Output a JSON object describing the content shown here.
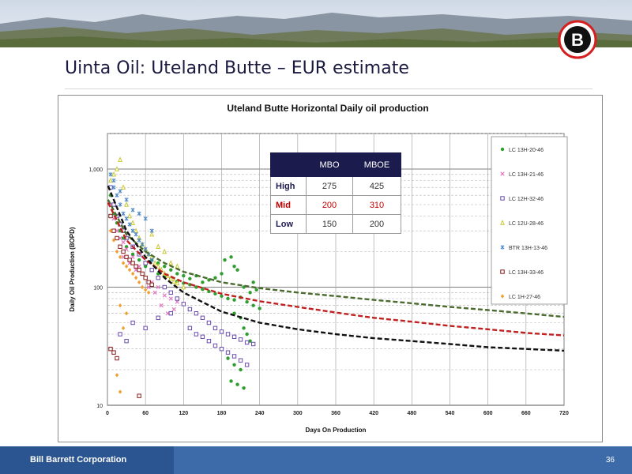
{
  "slide": {
    "title": "Uinta Oil: Uteland Butte – EUR estimate",
    "company": "Bill Barrett Corporation",
    "page_number": "36",
    "logo_letter": "B"
  },
  "eur_table": {
    "headers": [
      "",
      "MBO",
      "MBOE"
    ],
    "rows": [
      {
        "label": "High",
        "mbo": "275",
        "mboe": "425"
      },
      {
        "label": "Mid",
        "mbo": "200",
        "mboe": "310"
      },
      {
        "label": "Low",
        "mbo": "150",
        "mboe": "200"
      }
    ]
  },
  "chart_data": {
    "type": "scatter",
    "title": "Uteland Butte Horizontal Daily oil production",
    "xlabel": "Days On Production",
    "ylabel": "Daily Oil Production (BOPD)",
    "xlim": [
      0,
      720
    ],
    "ylim": [
      10,
      2000
    ],
    "y_scale": "log",
    "x_ticks": [
      0,
      60,
      120,
      180,
      240,
      300,
      360,
      420,
      480,
      540,
      600,
      660,
      720
    ],
    "x_tick_labels": [
      "0",
      "60",
      "120",
      "180",
      "240",
      "300",
      "360",
      "420",
      "480",
      "540",
      "600",
      "660",
      "720"
    ],
    "y_ticks": [
      10,
      100,
      1000
    ],
    "y_tick_labels": [
      "10",
      "100",
      "1,000"
    ],
    "grid": true,
    "legend_position": "right",
    "series": [
      {
        "name": "LC 13H-20-46",
        "marker": "circle",
        "color": "#2e9e2e",
        "points": [
          [
            5,
            600
          ],
          [
            10,
            420
          ],
          [
            15,
            350
          ],
          [
            20,
            300
          ],
          [
            25,
            260
          ],
          [
            30,
            220
          ],
          [
            40,
            190
          ],
          [
            50,
            170
          ],
          [
            60,
            150
          ],
          [
            70,
            140
          ],
          [
            80,
            130
          ],
          [
            90,
            125
          ],
          [
            100,
            118
          ],
          [
            110,
            112
          ],
          [
            120,
            108
          ],
          [
            130,
            105
          ],
          [
            140,
            100
          ],
          [
            150,
            96
          ],
          [
            160,
            92
          ],
          [
            170,
            88
          ],
          [
            180,
            84
          ],
          [
            190,
            80
          ],
          [
            200,
            78
          ],
          [
            210,
            82
          ],
          [
            220,
            75
          ],
          [
            230,
            70
          ],
          [
            240,
            66
          ],
          [
            185,
            170
          ],
          [
            195,
            180
          ],
          [
            200,
            150
          ],
          [
            205,
            140
          ],
          [
            215,
            100
          ],
          [
            225,
            90
          ],
          [
            230,
            110
          ],
          [
            235,
            95
          ],
          [
            200,
            60
          ],
          [
            210,
            55
          ],
          [
            215,
            45
          ],
          [
            220,
            40
          ],
          [
            190,
            25
          ],
          [
            200,
            22
          ],
          [
            210,
            20
          ],
          [
            195,
            16
          ],
          [
            205,
            15
          ],
          [
            215,
            14
          ],
          [
            225,
            35
          ],
          [
            180,
            130
          ],
          [
            170,
            120
          ],
          [
            160,
            115
          ],
          [
            150,
            110
          ],
          [
            140,
            125
          ],
          [
            130,
            118
          ],
          [
            120,
            125
          ],
          [
            110,
            130
          ],
          [
            100,
            140
          ],
          [
            90,
            150
          ],
          [
            80,
            160
          ],
          [
            70,
            170
          ]
        ]
      },
      {
        "name": "LC 13H-21-46",
        "marker": "x",
        "color": "#e377c2",
        "points": [
          [
            5,
            500
          ],
          [
            10,
            380
          ],
          [
            15,
            300
          ],
          [
            20,
            260
          ],
          [
            25,
            240
          ],
          [
            30,
            210
          ],
          [
            40,
            180
          ],
          [
            50,
            150
          ],
          [
            60,
            120
          ],
          [
            70,
            110
          ],
          [
            80,
            100
          ],
          [
            90,
            85
          ],
          [
            100,
            80
          ],
          [
            110,
            75
          ],
          [
            15,
            300
          ],
          [
            25,
            180
          ],
          [
            35,
            160
          ],
          [
            45,
            140
          ],
          [
            55,
            130
          ],
          [
            65,
            100
          ],
          [
            75,
            90
          ],
          [
            85,
            70
          ],
          [
            95,
            60
          ],
          [
            105,
            65
          ]
        ]
      },
      {
        "name": "LC 12H-32-46",
        "marker": "square",
        "color": "#6a4bb0",
        "points": [
          [
            5,
            700
          ],
          [
            10,
            500
          ],
          [
            15,
            400
          ],
          [
            20,
            340
          ],
          [
            25,
            300
          ],
          [
            30,
            260
          ],
          [
            40,
            220
          ],
          [
            50,
            190
          ],
          [
            60,
            160
          ],
          [
            70,
            140
          ],
          [
            80,
            120
          ],
          [
            90,
            100
          ],
          [
            100,
            90
          ],
          [
            110,
            80
          ],
          [
            120,
            72
          ],
          [
            130,
            65
          ],
          [
            140,
            60
          ],
          [
            150,
            55
          ],
          [
            160,
            50
          ],
          [
            170,
            45
          ],
          [
            180,
            42
          ],
          [
            190,
            40
          ],
          [
            200,
            38
          ],
          [
            210,
            36
          ],
          [
            220,
            34
          ],
          [
            230,
            33
          ],
          [
            130,
            45
          ],
          [
            140,
            40
          ],
          [
            150,
            38
          ],
          [
            160,
            35
          ],
          [
            170,
            32
          ],
          [
            180,
            30
          ],
          [
            190,
            28
          ],
          [
            200,
            26
          ],
          [
            210,
            24
          ],
          [
            220,
            22
          ],
          [
            20,
            40
          ],
          [
            30,
            35
          ],
          [
            40,
            50
          ],
          [
            60,
            45
          ],
          [
            80,
            55
          ],
          [
            100,
            60
          ]
        ]
      },
      {
        "name": "LC 12U-28-46",
        "marker": "triangle",
        "color": "#c9c832",
        "points": [
          [
            5,
            800
          ],
          [
            10,
            900
          ],
          [
            15,
            1000
          ],
          [
            20,
            1200
          ],
          [
            25,
            700
          ],
          [
            30,
            500
          ],
          [
            35,
            400
          ],
          [
            40,
            350
          ],
          [
            45,
            300
          ],
          [
            50,
            260
          ],
          [
            55,
            230
          ],
          [
            60,
            210
          ],
          [
            65,
            190
          ],
          [
            70,
            180
          ],
          [
            75,
            160
          ],
          [
            80,
            150
          ],
          [
            85,
            140
          ],
          [
            90,
            130
          ],
          [
            95,
            125
          ],
          [
            100,
            118
          ],
          [
            105,
            112
          ],
          [
            110,
            108
          ],
          [
            120,
            100
          ],
          [
            70,
            280
          ],
          [
            80,
            220
          ],
          [
            90,
            200
          ],
          [
            100,
            160
          ],
          [
            110,
            150
          ]
        ]
      },
      {
        "name": "BTR 13H-13-46",
        "marker": "star",
        "color": "#4a86c6",
        "points": [
          [
            5,
            900
          ],
          [
            10,
            700
          ],
          [
            15,
            600
          ],
          [
            20,
            500
          ],
          [
            25,
            420
          ],
          [
            30,
            380
          ],
          [
            35,
            340
          ],
          [
            40,
            300
          ],
          [
            45,
            280
          ],
          [
            50,
            250
          ],
          [
            55,
            230
          ],
          [
            60,
            210
          ],
          [
            65,
            190
          ],
          [
            70,
            170
          ],
          [
            10,
            800
          ],
          [
            20,
            650
          ],
          [
            30,
            550
          ],
          [
            40,
            450
          ],
          [
            50,
            420
          ],
          [
            60,
            380
          ],
          [
            70,
            300
          ]
        ]
      },
      {
        "name": "LC 13H-33-46",
        "marker": "square",
        "color": "#8b1a1a",
        "points": [
          [
            5,
            400
          ],
          [
            10,
            300
          ],
          [
            15,
            260
          ],
          [
            20,
            220
          ],
          [
            25,
            200
          ],
          [
            30,
            180
          ],
          [
            35,
            170
          ],
          [
            40,
            160
          ],
          [
            45,
            150
          ],
          [
            50,
            140
          ],
          [
            55,
            130
          ],
          [
            60,
            120
          ],
          [
            65,
            110
          ],
          [
            70,
            105
          ],
          [
            5,
            30
          ],
          [
            10,
            28
          ],
          [
            15,
            25
          ],
          [
            50,
            12
          ]
        ]
      },
      {
        "name": "LC 1H-27-46",
        "marker": "diamond",
        "color": "#f0a030",
        "points": [
          [
            5,
            300
          ],
          [
            10,
            250
          ],
          [
            15,
            200
          ],
          [
            20,
            180
          ],
          [
            25,
            160
          ],
          [
            30,
            150
          ],
          [
            35,
            140
          ],
          [
            40,
            130
          ],
          [
            45,
            120
          ],
          [
            50,
            110
          ],
          [
            55,
            100
          ],
          [
            60,
            95
          ],
          [
            65,
            90
          ],
          [
            20,
            70
          ],
          [
            30,
            60
          ],
          [
            15,
            18
          ],
          [
            20,
            13
          ],
          [
            25,
            45
          ]
        ]
      }
    ],
    "type_curves": [
      {
        "name": "High",
        "color": "#4b6b2e",
        "points": [
          [
            1,
            550
          ],
          [
            30,
            280
          ],
          [
            60,
            200
          ],
          [
            90,
            160
          ],
          [
            120,
            135
          ],
          [
            180,
            110
          ],
          [
            240,
            98
          ],
          [
            300,
            90
          ],
          [
            360,
            84
          ],
          [
            420,
            78
          ],
          [
            480,
            73
          ],
          [
            540,
            68
          ],
          [
            600,
            64
          ],
          [
            660,
            60
          ],
          [
            720,
            56
          ]
        ]
      },
      {
        "name": "Mid",
        "color": "#c02020",
        "points": [
          [
            1,
            520
          ],
          [
            30,
            250
          ],
          [
            60,
            170
          ],
          [
            90,
            130
          ],
          [
            120,
            110
          ],
          [
            180,
            88
          ],
          [
            240,
            76
          ],
          [
            300,
            68
          ],
          [
            360,
            61
          ],
          [
            420,
            55
          ],
          [
            480,
            51
          ],
          [
            540,
            47
          ],
          [
            600,
            44
          ],
          [
            660,
            41
          ],
          [
            720,
            39
          ]
        ]
      },
      {
        "name": "Low",
        "color": "#111111",
        "points": [
          [
            1,
            720
          ],
          [
            30,
            300
          ],
          [
            60,
            180
          ],
          [
            90,
            120
          ],
          [
            120,
            90
          ],
          [
            180,
            62
          ],
          [
            240,
            50
          ],
          [
            300,
            44
          ],
          [
            360,
            40
          ],
          [
            420,
            37
          ],
          [
            480,
            35
          ],
          [
            540,
            33
          ],
          [
            600,
            31
          ],
          [
            660,
            30
          ],
          [
            720,
            29
          ]
        ]
      }
    ]
  }
}
